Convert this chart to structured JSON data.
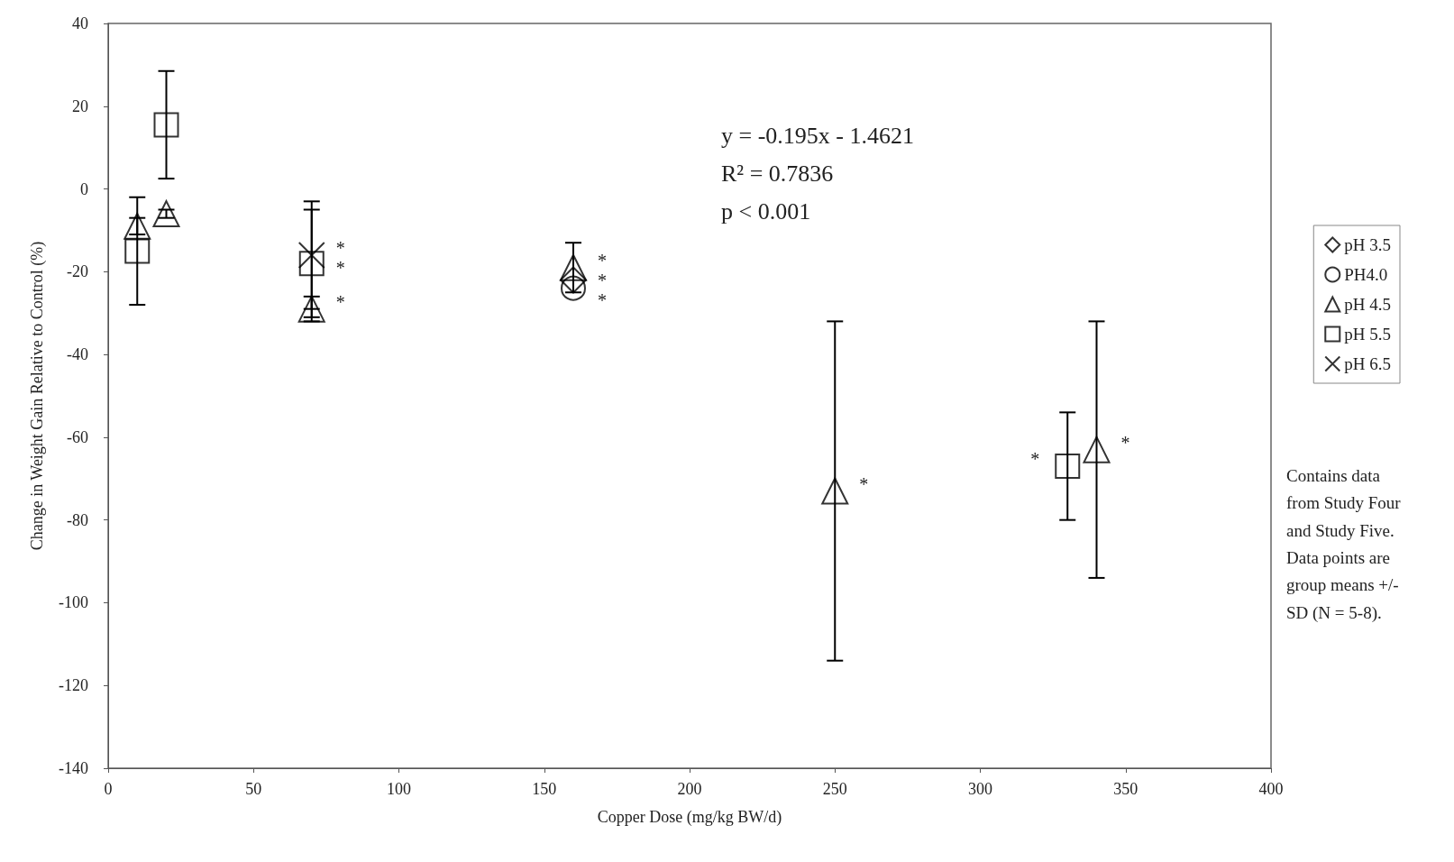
{
  "chart_data": {
    "type": "scatter",
    "xlabel": "Copper Dose (mg/kg BW/d)",
    "ylabel": "Change in Weight Gain Relative to Control (%)",
    "xlim": [
      0,
      400
    ],
    "xticks": [
      0,
      50,
      100,
      150,
      200,
      250,
      300,
      350,
      400
    ],
    "ylim": [
      -140,
      40
    ],
    "yticks": [
      -140,
      -120,
      -100,
      -80,
      -60,
      -40,
      -20,
      0,
      20,
      40
    ],
    "grid": false,
    "legend": "right",
    "series": [
      {
        "name": "pH 3.5",
        "color": "#000000",
        "marker": "diamond",
        "x": [
          160
        ],
        "values": [
          -22
        ]
      },
      {
        "name": "PH4.0",
        "color": "#000000",
        "marker": "circle",
        "x": [
          160
        ],
        "values": [
          -24
        ]
      },
      {
        "name": "pH 4.5",
        "color": "#000000",
        "marker": "triangle",
        "x": [
          10,
          20,
          70,
          160,
          250,
          340
        ],
        "values": [
          -9,
          -6,
          -29,
          -19,
          -73,
          -63
        ],
        "errors": [
          2,
          1,
          3,
          6,
          41,
          31
        ]
      },
      {
        "name": "pH 5.5",
        "color": "#000000",
        "marker": "square",
        "x": [
          10,
          20,
          70,
          330
        ],
        "values": [
          -15,
          15.5,
          -18,
          -67
        ],
        "errors": [
          13,
          13,
          13,
          13
        ]
      },
      {
        "name": "pH 6.5",
        "color": "#000000",
        "marker": "cross",
        "x": [
          70
        ],
        "values": [
          -16
        ],
        "errors": [
          13
        ]
      }
    ],
    "annotations": [
      "y = -0.195x - 1.4621\nR² = 0.7836\np < 0.001",
      "Contains data\nfrom Study Four\nand Study Five.\nData points are\ngroup means +/-\nSD (N = 5-8).",
      {
        "text": "*",
        "x": 70,
        "y": -16
      },
      {
        "text": "*",
        "x": 70,
        "y": -18
      },
      {
        "text": "*",
        "x": 70,
        "y": -29
      },
      {
        "text": "*",
        "x": 160,
        "y": -19
      },
      {
        "text": "*",
        "x": 160,
        "y": -22
      },
      {
        "text": "*",
        "x": 160,
        "y": -24
      },
      {
        "text": "*",
        "x": 250,
        "y": -73
      },
      {
        "text": "*",
        "x": 330,
        "y": -67
      },
      {
        "text": "*",
        "x": 340,
        "y": -63
      }
    ]
  }
}
